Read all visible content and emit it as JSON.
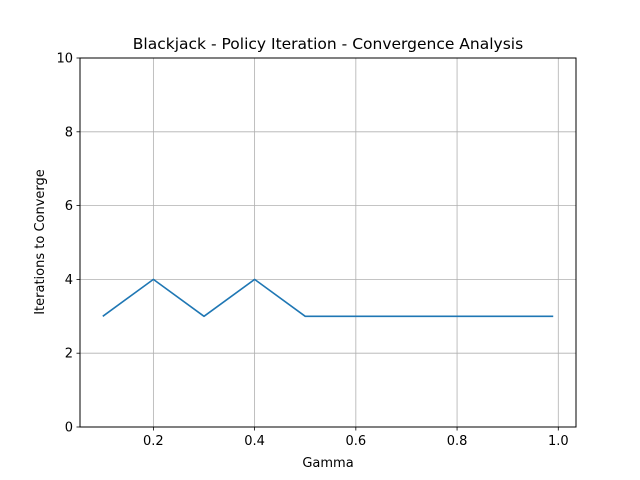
{
  "chart_data": {
    "type": "line",
    "title": "Blackjack - Policy Iteration - Convergence Analysis",
    "xlabel": "Gamma",
    "ylabel": "Iterations to Converge",
    "xlim": [
      0.055,
      1.035
    ],
    "ylim": [
      0,
      10
    ],
    "xticks": [
      0.2,
      0.4,
      0.6,
      0.8,
      1.0
    ],
    "xtick_labels": [
      "0.2",
      "0.4",
      "0.6",
      "0.8",
      "1.0"
    ],
    "yticks": [
      0,
      2,
      4,
      6,
      8,
      10
    ],
    "ytick_labels": [
      "0",
      "2",
      "4",
      "6",
      "8",
      "10"
    ],
    "grid": true,
    "series": [
      {
        "color": "#1f77b4",
        "x": [
          0.1,
          0.2,
          0.3,
          0.4,
          0.5,
          0.6,
          0.7,
          0.8,
          0.9,
          0.99
        ],
        "y": [
          3,
          4,
          3,
          4,
          3,
          3,
          3,
          3,
          3,
          3
        ]
      }
    ]
  }
}
